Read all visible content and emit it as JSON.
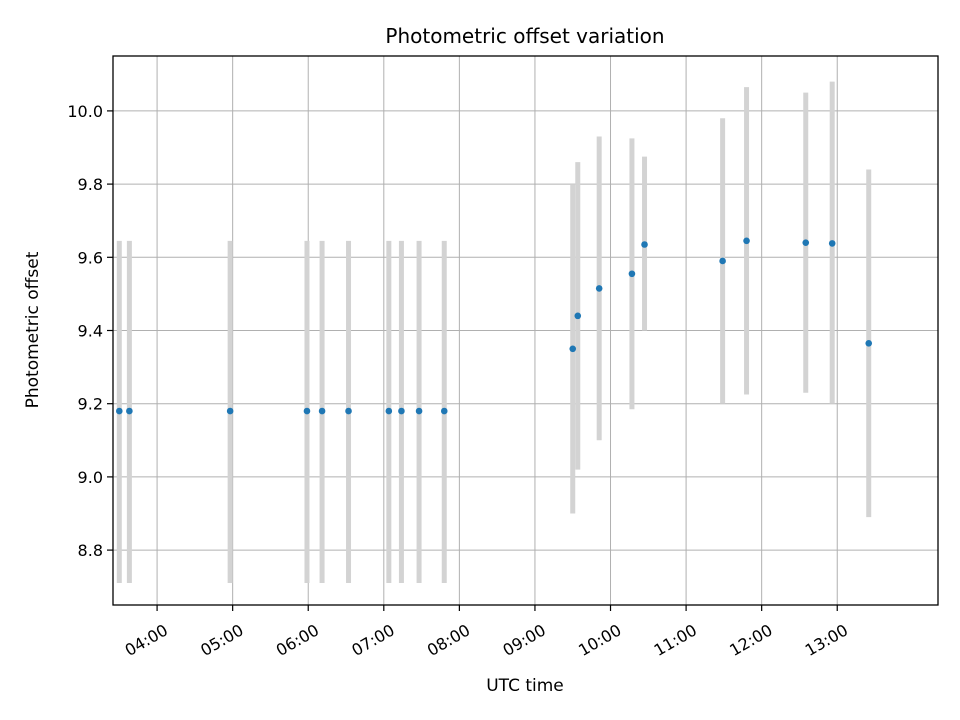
{
  "chart_data": {
    "type": "scatter",
    "title": "Photometric offset variation",
    "xlabel": "UTC time",
    "ylabel": "Photometric offset",
    "x_axis_type": "time",
    "xlim": [
      "03:25",
      "14:20"
    ],
    "ylim": [
      8.65,
      10.15
    ],
    "x_ticks": [
      "04:00",
      "05:00",
      "06:00",
      "07:00",
      "08:00",
      "09:00",
      "10:00",
      "11:00",
      "12:00",
      "13:00"
    ],
    "y_ticks": [
      8.8,
      9.0,
      9.2,
      9.4,
      9.6,
      9.8,
      10.0
    ],
    "y_tick_labels": [
      "8.8",
      "9.0",
      "9.2",
      "9.4",
      "9.6",
      "9.8",
      "10.0"
    ],
    "grid": true,
    "legend": "none",
    "colors": {
      "point": "#1f77b4",
      "errorbar": "#d3d3d3",
      "grid": "#b0b0b0"
    },
    "points": [
      {
        "x": "03:30",
        "y": 9.18,
        "ylow": 8.71,
        "yhigh": 9.645
      },
      {
        "x": "03:38",
        "y": 9.18,
        "ylow": 8.71,
        "yhigh": 9.645
      },
      {
        "x": "04:58",
        "y": 9.18,
        "ylow": 8.71,
        "yhigh": 9.645
      },
      {
        "x": "05:59",
        "y": 9.18,
        "ylow": 8.71,
        "yhigh": 9.645
      },
      {
        "x": "06:11",
        "y": 9.18,
        "ylow": 8.71,
        "yhigh": 9.645
      },
      {
        "x": "06:32",
        "y": 9.18,
        "ylow": 8.71,
        "yhigh": 9.645
      },
      {
        "x": "07:04",
        "y": 9.18,
        "ylow": 8.71,
        "yhigh": 9.645
      },
      {
        "x": "07:14",
        "y": 9.18,
        "ylow": 8.71,
        "yhigh": 9.645
      },
      {
        "x": "07:28",
        "y": 9.18,
        "ylow": 8.71,
        "yhigh": 9.645
      },
      {
        "x": "07:48",
        "y": 9.18,
        "ylow": 8.71,
        "yhigh": 9.645
      },
      {
        "x": "09:30",
        "y": 9.35,
        "ylow": 8.9,
        "yhigh": 9.8
      },
      {
        "x": "09:34",
        "y": 9.44,
        "ylow": 9.02,
        "yhigh": 9.86
      },
      {
        "x": "09:51",
        "y": 9.515,
        "ylow": 9.1,
        "yhigh": 9.93
      },
      {
        "x": "10:17",
        "y": 9.555,
        "ylow": 9.185,
        "yhigh": 9.925
      },
      {
        "x": "10:27",
        "y": 9.635,
        "ylow": 9.4,
        "yhigh": 9.875
      },
      {
        "x": "11:29",
        "y": 9.59,
        "ylow": 9.2,
        "yhigh": 9.98
      },
      {
        "x": "11:48",
        "y": 9.645,
        "ylow": 9.225,
        "yhigh": 10.065
      },
      {
        "x": "12:35",
        "y": 9.64,
        "ylow": 9.23,
        "yhigh": 10.05
      },
      {
        "x": "12:56",
        "y": 9.638,
        "ylow": 9.2,
        "yhigh": 10.08
      },
      {
        "x": "13:25",
        "y": 9.365,
        "ylow": 8.89,
        "yhigh": 9.84
      }
    ]
  }
}
